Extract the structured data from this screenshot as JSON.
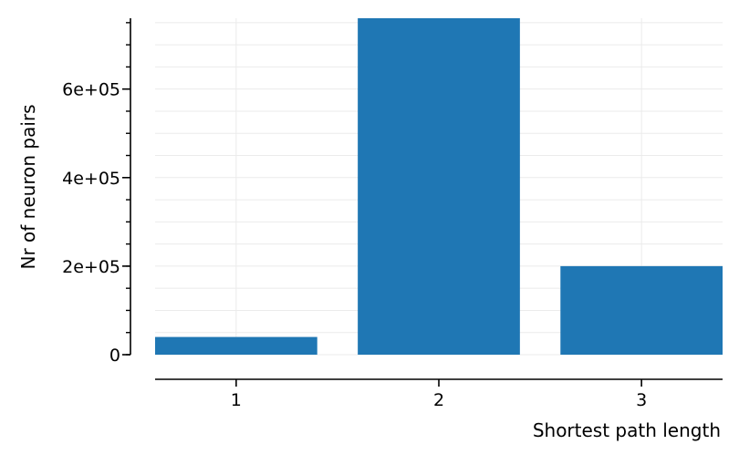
{
  "chart_data": {
    "type": "bar",
    "categories": [
      "1",
      "2",
      "3"
    ],
    "x": [
      1,
      2,
      3
    ],
    "values": [
      40000,
      760000,
      200000
    ],
    "title": "",
    "xlabel": "Shortest path length",
    "ylabel": "Nr of neuron pairs",
    "ylim": [
      0,
      760000
    ],
    "y_ticks": [
      0,
      200000,
      400000,
      600000
    ],
    "y_tick_labels": [
      "0",
      "2e+05",
      "4e+05",
      "6e+05"
    ],
    "y_minor_step": 50000,
    "grid": true,
    "bar_color": "#1f77b4",
    "grid_color": "#ebebeb",
    "axis_color": "#000000",
    "legend": "none"
  }
}
